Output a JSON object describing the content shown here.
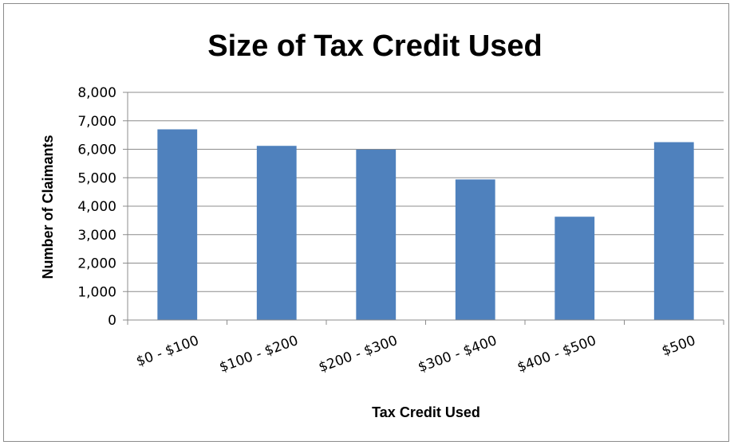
{
  "chart_data": {
    "type": "bar",
    "title": "Size of Tax Credit Used",
    "xlabel": "Tax Credit Used",
    "ylabel": "Number of Claimants",
    "categories": [
      "$0 - $100",
      "$100 - $200",
      "$200 - $300",
      "$300 - $400",
      "$400 - $500",
      "$500"
    ],
    "values": [
      6700,
      6120,
      5990,
      4940,
      3630,
      6250
    ],
    "ylim": [
      0,
      8000
    ],
    "yticks": [
      0,
      1000,
      2000,
      3000,
      4000,
      5000,
      6000,
      7000,
      8000
    ],
    "ytick_labels": [
      "0",
      "1,000",
      "2,000",
      "3,000",
      "4,000",
      "5,000",
      "6,000",
      "7,000",
      "8,000"
    ],
    "grid": true,
    "legend": "none",
    "bar_color": "#4f81bd",
    "grid_color": "#8c8c8c"
  }
}
